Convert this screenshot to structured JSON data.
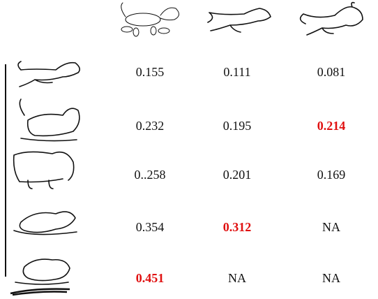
{
  "table": {
    "rows": [
      [
        {
          "text": "0.155"
        },
        {
          "text": "0.111"
        },
        {
          "text": "0.081"
        }
      ],
      [
        {
          "text": "0.232"
        },
        {
          "text": "0.195"
        },
        {
          "text": "0.214",
          "best": true
        }
      ],
      [
        {
          "text": "0..258"
        },
        {
          "text": "0.201"
        },
        {
          "text": "0.169"
        }
      ],
      [
        {
          "text": "0.354"
        },
        {
          "text": "0.312",
          "best": true
        },
        {
          "text": "NA"
        }
      ],
      [
        {
          "text": "0.451",
          "best": true
        },
        {
          "text": "NA"
        },
        {
          "text": "NA"
        }
      ]
    ]
  }
}
